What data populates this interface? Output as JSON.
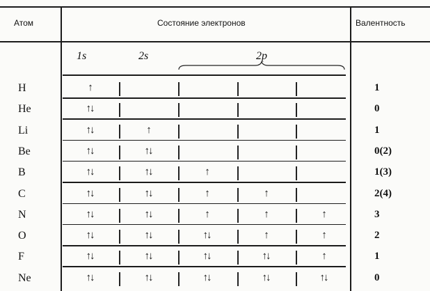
{
  "header": {
    "atom": "Атом",
    "state": "Состояние электронов",
    "valence": "Валентность"
  },
  "orbitals": {
    "s1": "1s",
    "s2": "2s",
    "p2": "2p"
  },
  "rows": [
    {
      "atom": "H",
      "cells": [
        "↑",
        "",
        "",
        "",
        ""
      ],
      "valence": "1"
    },
    {
      "atom": "He",
      "cells": [
        "↑↓",
        "",
        "",
        "",
        ""
      ],
      "valence": "0"
    },
    {
      "atom": "Li",
      "cells": [
        "↑↓",
        "↑",
        "",
        "",
        ""
      ],
      "valence": "1"
    },
    {
      "atom": "Be",
      "cells": [
        "↑↓",
        "↑↓",
        "",
        "",
        ""
      ],
      "valence": "0(2)"
    },
    {
      "atom": "B",
      "cells": [
        "↑↓",
        "↑↓",
        "↑",
        "",
        ""
      ],
      "valence": "1(3)"
    },
    {
      "atom": "C",
      "cells": [
        "↑↓",
        "↑↓",
        "↑",
        "↑",
        ""
      ],
      "valence": "2(4)"
    },
    {
      "atom": "N",
      "cells": [
        "↑↓",
        "↑↓",
        "↑",
        "↑",
        "↑"
      ],
      "valence": "3"
    },
    {
      "atom": "O",
      "cells": [
        "↑↓",
        "↑↓",
        "↑↓",
        "↑",
        "↑"
      ],
      "valence": "2"
    },
    {
      "atom": "F",
      "cells": [
        "↑↓",
        "↑↓",
        "↑↓",
        "↑↓",
        "↑"
      ],
      "valence": "1"
    },
    {
      "atom": "Ne",
      "cells": [
        "↑↓",
        "↑↓",
        "↑↓",
        "↑↓",
        "↑↓"
      ],
      "valence": "0"
    }
  ]
}
